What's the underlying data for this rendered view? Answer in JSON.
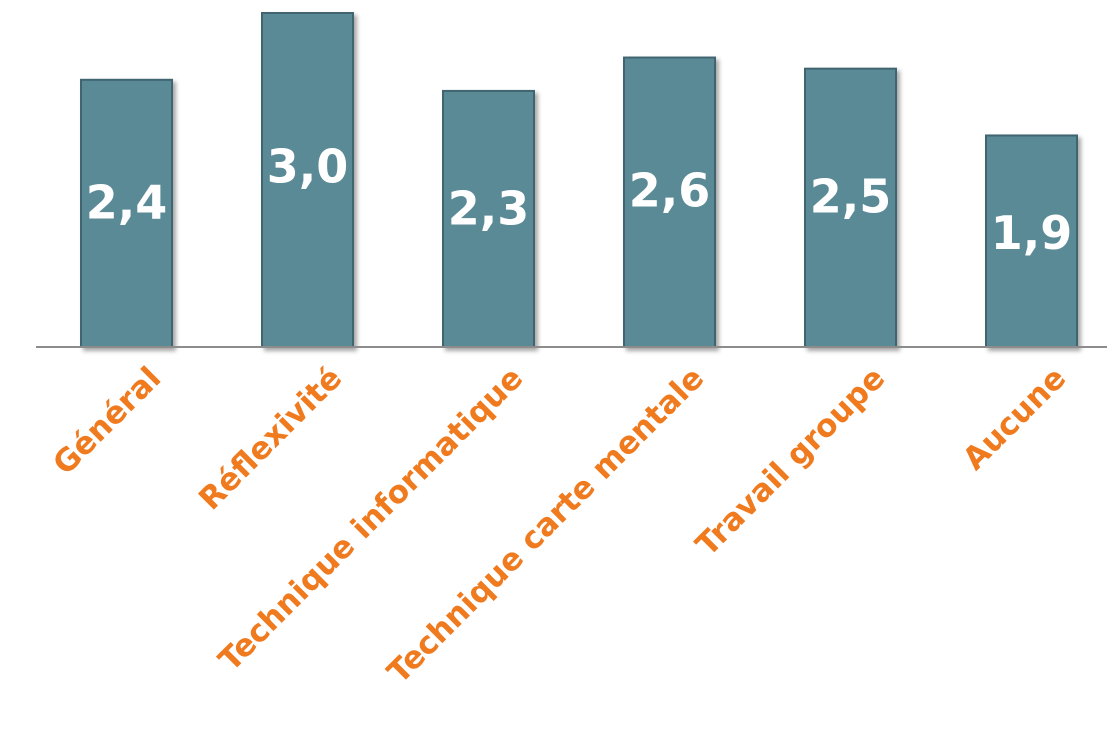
{
  "chart_data": {
    "type": "bar",
    "categories": [
      "Général",
      "Réflexivité",
      "Technique informatique",
      "Technique carte mentale",
      "Travail groupe",
      "Aucune"
    ],
    "values": [
      2.4,
      3.0,
      2.3,
      2.6,
      2.5,
      1.9
    ],
    "value_labels": [
      "2,4",
      "3,0",
      "2,3",
      "2,6",
      "2,5",
      "1,9"
    ],
    "ylim": [
      0,
      3.0
    ],
    "grid": false,
    "legend": "none",
    "colors": {
      "bar": "#5a8a96",
      "bar_edge": "#3f6570",
      "axis": "#8c8c8c",
      "label": "#f07a1e",
      "value_text": "#ffffff"
    }
  }
}
